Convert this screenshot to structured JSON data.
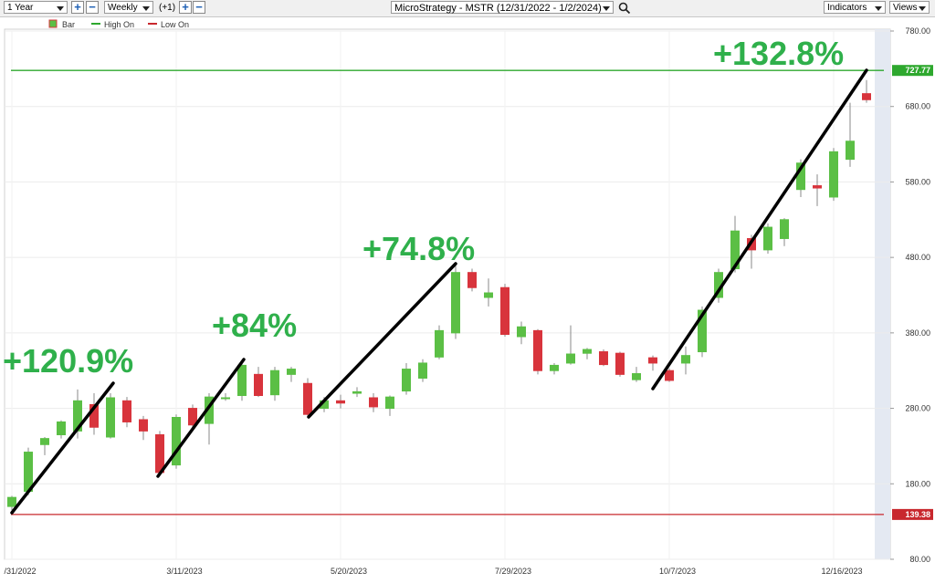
{
  "toolbar": {
    "period": "1 Year",
    "interval": "Weekly",
    "offset": "(+1)",
    "symbol": "MicroStrategy - MSTR (12/31/2022 - 1/2/2024)",
    "indicators": "Indicators",
    "views": "Views"
  },
  "chart_data": {
    "type": "candlestick",
    "series_name": "Bar",
    "up_color": "#5bbf45",
    "down_color": "#d8343c",
    "categories": [
      "/31/2022",
      null,
      null,
      null,
      null,
      null,
      null,
      null,
      null,
      null,
      "3/11/2023",
      null,
      null,
      null,
      null,
      null,
      null,
      null,
      null,
      null,
      "5/20/2023",
      null,
      null,
      null,
      null,
      null,
      null,
      null,
      null,
      null,
      "7/29/2023",
      null,
      null,
      null,
      null,
      null,
      null,
      null,
      null,
      null,
      "10/7/2023",
      null,
      null,
      null,
      null,
      null,
      null,
      null,
      null,
      null,
      "12/16/2023",
      null,
      null
    ],
    "open": [
      150,
      170,
      232,
      245,
      250,
      285,
      242,
      290,
      265,
      245,
      205,
      280,
      260,
      294,
      297,
      325,
      298,
      325,
      313,
      280,
      290,
      300,
      294,
      280,
      303,
      320,
      348,
      380,
      460,
      427,
      440,
      375,
      383,
      330,
      340,
      353,
      355,
      353,
      318,
      347,
      330,
      340,
      355,
      427,
      465,
      505,
      490,
      505,
      570,
      575,
      560,
      610,
      697
    ],
    "high": [
      164,
      228,
      242,
      264,
      305,
      300,
      300,
      295,
      270,
      250,
      272,
      285,
      300,
      300,
      340,
      335,
      335,
      335,
      320,
      295,
      298,
      308,
      300,
      297,
      340,
      345,
      390,
      470,
      465,
      452,
      445,
      395,
      385,
      340,
      390,
      360,
      358,
      355,
      335,
      350,
      333,
      362,
      415,
      465,
      535,
      510,
      525,
      532,
      610,
      590,
      625,
      685,
      715
    ],
    "low": [
      145,
      165,
      218,
      240,
      240,
      245,
      240,
      255,
      238,
      190,
      200,
      255,
      232,
      290,
      290,
      295,
      290,
      315,
      270,
      275,
      280,
      295,
      275,
      270,
      298,
      315,
      345,
      372,
      435,
      415,
      375,
      365,
      325,
      325,
      338,
      345,
      336,
      322,
      315,
      330,
      315,
      325,
      348,
      420,
      460,
      465,
      485,
      495,
      560,
      548,
      555,
      600,
      685
    ],
    "close": [
      162,
      222,
      240,
      262,
      290,
      255,
      294,
      262,
      250,
      195,
      268,
      258,
      295,
      294,
      337,
      297,
      330,
      332,
      272,
      290,
      287,
      302,
      282,
      295,
      332,
      340,
      383,
      460,
      440,
      433,
      378,
      388,
      330,
      337,
      352,
      358,
      338,
      325,
      326,
      340,
      317,
      350,
      410,
      460,
      515,
      490,
      520,
      530,
      605,
      572,
      620,
      634,
      689
    ],
    "ref_lines": [
      {
        "name": "High On",
        "value": 727.77,
        "color": "#2ea82e"
      },
      {
        "name": "Low On",
        "value": 139.38,
        "color": "#c8282e"
      }
    ],
    "annotations": [
      {
        "text": "+120.9%"
      },
      {
        "text": "+84%"
      },
      {
        "text": "+74.8%"
      },
      {
        "text": "+132.8%"
      }
    ],
    "annotation_color": "#2fb04b",
    "ylim": [
      80,
      780
    ],
    "yticks": [
      {
        "value": 80,
        "label": "80.00"
      },
      {
        "value": 180,
        "label": "180.00"
      },
      {
        "value": 280,
        "label": "280.00"
      },
      {
        "value": 380,
        "label": "380.00"
      },
      {
        "value": 480,
        "label": "480.00"
      },
      {
        "value": 580,
        "label": "580.00"
      },
      {
        "value": 680,
        "label": "680.00"
      },
      {
        "value": 780,
        "label": "780.00"
      }
    ],
    "grid": true
  }
}
